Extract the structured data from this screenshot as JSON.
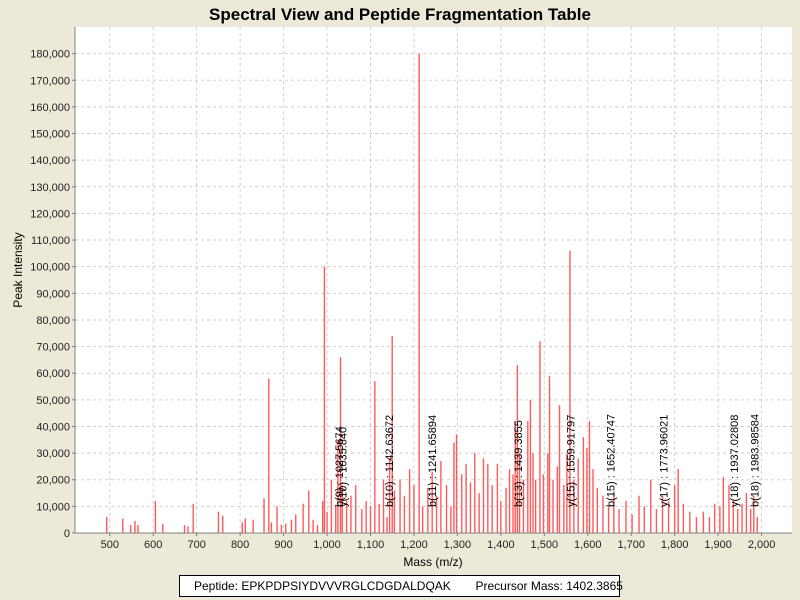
{
  "chart_data": {
    "type": "bar",
    "title": "Spectral View and Peptide Fragmentation Table",
    "xlabel": "Mass (m/z)",
    "ylabel": "Peak Intensity",
    "xlim": [
      420,
      2070
    ],
    "ylim": [
      0,
      190000
    ],
    "xticks": [
      500,
      600,
      700,
      800,
      900,
      1000,
      1100,
      1200,
      1300,
      1400,
      1500,
      1600,
      1700,
      1800,
      1900,
      2000
    ],
    "xtick_labels": [
      "500",
      "600",
      "700",
      "800",
      "900",
      "1,000",
      "1,100",
      "1,200",
      "1,300",
      "1,400",
      "1,500",
      "1,600",
      "1,700",
      "1,800",
      "1,900",
      "2,000"
    ],
    "yticks": [
      0,
      10000,
      20000,
      30000,
      40000,
      50000,
      60000,
      70000,
      80000,
      90000,
      100000,
      110000,
      120000,
      130000,
      140000,
      150000,
      160000,
      170000,
      180000
    ],
    "ytick_labels": [
      "0",
      "10,000",
      "20,000",
      "30,000",
      "40,000",
      "50,000",
      "60,000",
      "70,000",
      "80,000",
      "90,000",
      "100,000",
      "110,000",
      "120,000",
      "130,000",
      "140,000",
      "150,000",
      "160,000",
      "170,000",
      "180,000"
    ],
    "grid": true,
    "bar_color": "#ff5a5a",
    "peaks": [
      [
        493,
        6000
      ],
      [
        530,
        5500
      ],
      [
        548,
        3000
      ],
      [
        558,
        4500
      ],
      [
        565,
        3000
      ],
      [
        605,
        12000
      ],
      [
        622,
        3500
      ],
      [
        672,
        3000
      ],
      [
        680,
        2500
      ],
      [
        692,
        11000
      ],
      [
        750,
        8000
      ],
      [
        760,
        6500
      ],
      [
        805,
        4000
      ],
      [
        812,
        5500
      ],
      [
        830,
        5000
      ],
      [
        855,
        13000
      ],
      [
        866,
        58000
      ],
      [
        872,
        4000
      ],
      [
        885,
        10000
      ],
      [
        895,
        3000
      ],
      [
        905,
        3500
      ],
      [
        918,
        5000
      ],
      [
        928,
        7000
      ],
      [
        945,
        11000
      ],
      [
        958,
        16000
      ],
      [
        968,
        5000
      ],
      [
        978,
        3000
      ],
      [
        990,
        12000
      ],
      [
        994,
        100000
      ],
      [
        1000,
        8000
      ],
      [
        1010,
        20000
      ],
      [
        1020,
        10000
      ],
      [
        1025,
        35000
      ],
      [
        1031,
        66000
      ],
      [
        1035,
        18000
      ],
      [
        1045,
        12000
      ],
      [
        1055,
        14000
      ],
      [
        1066,
        18000
      ],
      [
        1080,
        9000
      ],
      [
        1090,
        12000
      ],
      [
        1100,
        10000
      ],
      [
        1110,
        57000
      ],
      [
        1120,
        11000
      ],
      [
        1130,
        20000
      ],
      [
        1138,
        6000
      ],
      [
        1144,
        28000
      ],
      [
        1150,
        74000
      ],
      [
        1155,
        16000
      ],
      [
        1168,
        20000
      ],
      [
        1178,
        14000
      ],
      [
        1190,
        24000
      ],
      [
        1200,
        18000
      ],
      [
        1212,
        180000
      ],
      [
        1220,
        10000
      ],
      [
        1232,
        17000
      ],
      [
        1242,
        23000
      ],
      [
        1252,
        14000
      ],
      [
        1262,
        27000
      ],
      [
        1275,
        18000
      ],
      [
        1285,
        10000
      ],
      [
        1292,
        34000
      ],
      [
        1298,
        37000
      ],
      [
        1310,
        22000
      ],
      [
        1320,
        26000
      ],
      [
        1330,
        19000
      ],
      [
        1340,
        30000
      ],
      [
        1350,
        15000
      ],
      [
        1360,
        28000
      ],
      [
        1370,
        26000
      ],
      [
        1380,
        18000
      ],
      [
        1392,
        26000
      ],
      [
        1400,
        12000
      ],
      [
        1412,
        17000
      ],
      [
        1420,
        24000
      ],
      [
        1428,
        22000
      ],
      [
        1433,
        42000
      ],
      [
        1438,
        63000
      ],
      [
        1443,
        30000
      ],
      [
        1452,
        20000
      ],
      [
        1462,
        42000
      ],
      [
        1468,
        50000
      ],
      [
        1474,
        30000
      ],
      [
        1480,
        20000
      ],
      [
        1490,
        72000
      ],
      [
        1498,
        22000
      ],
      [
        1508,
        30000
      ],
      [
        1512,
        59000
      ],
      [
        1520,
        20000
      ],
      [
        1530,
        25000
      ],
      [
        1535,
        48000
      ],
      [
        1545,
        18000
      ],
      [
        1552,
        30000
      ],
      [
        1559,
        106000
      ],
      [
        1568,
        20000
      ],
      [
        1578,
        28000
      ],
      [
        1590,
        36000
      ],
      [
        1598,
        32000
      ],
      [
        1604,
        42000
      ],
      [
        1612,
        24000
      ],
      [
        1622,
        17000
      ],
      [
        1635,
        14000
      ],
      [
        1648,
        10000
      ],
      [
        1660,
        15000
      ],
      [
        1672,
        9000
      ],
      [
        1688,
        12000
      ],
      [
        1702,
        7000
      ],
      [
        1718,
        14000
      ],
      [
        1730,
        10000
      ],
      [
        1745,
        20000
      ],
      [
        1758,
        9000
      ],
      [
        1772,
        14000
      ],
      [
        1786,
        12000
      ],
      [
        1800,
        18000
      ],
      [
        1808,
        24000
      ],
      [
        1820,
        11000
      ],
      [
        1835,
        8000
      ],
      [
        1850,
        6000
      ],
      [
        1866,
        8000
      ],
      [
        1880,
        6000
      ],
      [
        1892,
        11000
      ],
      [
        1904,
        10000
      ],
      [
        1912,
        21000
      ],
      [
        1925,
        18000
      ],
      [
        1935,
        12000
      ],
      [
        1945,
        9000
      ],
      [
        1955,
        11000
      ],
      [
        1965,
        15000
      ],
      [
        1975,
        9000
      ],
      [
        1982,
        14000
      ],
      [
        1990,
        6000
      ]
    ],
    "annotations": [
      {
        "mz": 1027.5674,
        "text": "b(9) : 1027.5674"
      },
      {
        "mz": 1035.84,
        "text": "y(10) : 1035.840"
      },
      {
        "mz": 1142.63672,
        "text": "b(10) : 1142.63672"
      },
      {
        "mz": 1241.65894,
        "text": "b(11) : 1241.65894"
      },
      {
        "mz": 1439.3855,
        "text": "b(13) : 1439.3855"
      },
      {
        "mz": 1559.91797,
        "text": "y(15) : 1559.91797"
      },
      {
        "mz": 1652.40747,
        "text": "b(15) : 1652.40747"
      },
      {
        "mz": 1773.96021,
        "text": "y(17) : 1773.96021"
      },
      {
        "mz": 1937.02808,
        "text": "y(18) : 1937.02808"
      },
      {
        "mz": 1983.98584,
        "text": "b(18) : 1983.98584"
      }
    ]
  },
  "info": {
    "peptide_label": "Peptide:",
    "peptide": "EPKPDPSIYDVVVRGLCDGDALDQAK",
    "precursor_label": "Precursor Mass:",
    "precursor_mass": "1402.3865"
  }
}
